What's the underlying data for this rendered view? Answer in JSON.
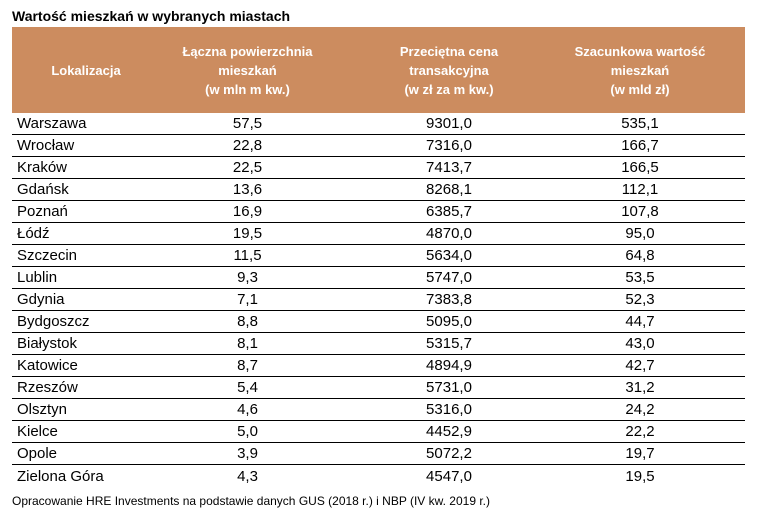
{
  "title": "Wartość mieszkań w wybranych miastach",
  "source_note": "Opracowanie HRE Investments na podstawie danych GUS (2018 r.) i NBP (IV kw. 2019 r.)",
  "colors": {
    "page_bg": "#FFFFFF",
    "header_bg": "#CC8C5F",
    "header_text": "#FFFFFF",
    "body_text": "#000000",
    "divider": "#000000"
  },
  "table": {
    "header_cells": [
      "Lokalizacja",
      "Łączna powierzchnia\nmieszkań\n(w mln m kw.)",
      "Przeciętna cena\ntransakcyjna\n(w zł za m kw.)",
      "Szacunkowa wartość\nmieszkań\n(w mld zł)"
    ]
  },
  "chart_data": {
    "type": "table",
    "title": "Wartość mieszkań w wybranych miastach",
    "columns": [
      "Lokalizacja",
      "Łączna powierzchnia mieszkań (w mln m kw.)",
      "Przeciętna cena transakcyjna (w zł za m kw.)",
      "Szacunkowa wartość mieszkań (w mld zł)"
    ],
    "rows": [
      [
        "Warszawa",
        "57,5",
        "9301,0",
        "535,1"
      ],
      [
        "Wrocław",
        "22,8",
        "7316,0",
        "166,7"
      ],
      [
        "Kraków",
        "22,5",
        "7413,7",
        "166,5"
      ],
      [
        "Gdańsk",
        "13,6",
        "8268,1",
        "112,1"
      ],
      [
        "Poznań",
        "16,9",
        "6385,7",
        "107,8"
      ],
      [
        "Łódź",
        "19,5",
        "4870,0",
        "95,0"
      ],
      [
        "Szczecin",
        "11,5",
        "5634,0",
        "64,8"
      ],
      [
        "Lublin",
        "9,3",
        "5747,0",
        "53,5"
      ],
      [
        "Gdynia",
        "7,1",
        "7383,8",
        "52,3"
      ],
      [
        "Bydgoszcz",
        "8,8",
        "5095,0",
        "44,7"
      ],
      [
        "Białystok",
        "8,1",
        "5315,7",
        "43,0"
      ],
      [
        "Katowice",
        "8,7",
        "4894,9",
        "42,7"
      ],
      [
        "Rzeszów",
        "5,4",
        "5731,0",
        "31,2"
      ],
      [
        "Olsztyn",
        "4,6",
        "5316,0",
        "24,2"
      ],
      [
        "Kielce",
        "5,0",
        "4452,9",
        "22,2"
      ],
      [
        "Opole",
        "3,9",
        "5072,2",
        "19,7"
      ],
      [
        "Zielona Góra",
        "4,3",
        "4547,0",
        "19,5"
      ]
    ],
    "source": "Opracowanie HRE Investments na podstawie danych GUS (2018 r.) i NBP (IV kw. 2019 r.)"
  }
}
